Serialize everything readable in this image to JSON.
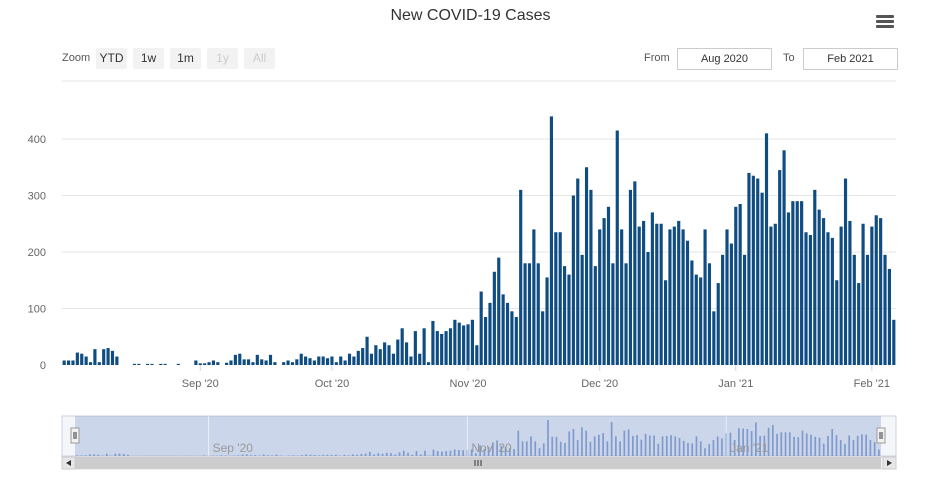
{
  "chart_data": {
    "type": "bar",
    "title": "New COVID-19 Cases",
    "xlabel": "",
    "ylabel": "",
    "ylim": [
      0,
      450
    ],
    "yticks": [
      0,
      100,
      200,
      300,
      400
    ],
    "xticks": [
      {
        "label": "Sep '20",
        "day": 31
      },
      {
        "label": "Oct '20",
        "day": 61
      },
      {
        "label": "Nov '20",
        "day": 92
      },
      {
        "label": "Dec '20",
        "day": 122
      },
      {
        "label": "Jan '21",
        "day": 153
      },
      {
        "label": "Feb '21",
        "day": 184
      }
    ],
    "start_date": "2020-08-01",
    "color": "#0f4c81",
    "values": [
      8,
      8,
      8,
      22,
      20,
      15,
      5,
      28,
      5,
      28,
      30,
      25,
      15,
      0,
      0,
      0,
      2,
      2,
      0,
      2,
      2,
      0,
      2,
      2,
      0,
      0,
      2,
      0,
      0,
      0,
      8,
      3,
      3,
      5,
      8,
      5,
      0,
      4,
      8,
      18,
      20,
      10,
      10,
      5,
      18,
      10,
      8,
      18,
      5,
      0,
      5,
      8,
      5,
      10,
      20,
      15,
      12,
      8,
      15,
      15,
      12,
      15,
      5,
      15,
      8,
      20,
      15,
      25,
      30,
      50,
      20,
      35,
      28,
      40,
      35,
      20,
      45,
      65,
      40,
      15,
      60,
      20,
      65,
      5,
      78,
      60,
      55,
      60,
      65,
      80,
      75,
      70,
      72,
      80,
      35,
      130,
      85,
      110,
      165,
      190,
      125,
      110,
      95,
      85,
      310,
      180,
      180,
      240,
      180,
      95,
      155,
      440,
      235,
      235,
      175,
      160,
      300,
      330,
      195,
      350,
      310,
      175,
      240,
      260,
      280,
      180,
      415,
      240,
      180,
      310,
      325,
      245,
      255,
      200,
      270,
      250,
      250,
      150,
      240,
      245,
      255,
      240,
      220,
      185,
      160,
      155,
      240,
      180,
      95,
      145,
      195,
      240,
      215,
      280,
      285,
      195,
      340,
      335,
      330,
      305,
      410,
      245,
      250,
      345,
      380,
      270,
      290,
      290,
      290,
      235,
      230,
      310,
      275,
      260,
      235,
      225,
      150,
      245,
      330,
      255,
      195,
      145,
      250,
      195,
      245,
      265,
      260,
      195,
      170,
      80
    ]
  },
  "toolbar": {
    "zoom_label": "Zoom",
    "zoom_buttons": [
      "YTD",
      "1w",
      "1m",
      "1y",
      "All"
    ],
    "from_label": "From",
    "from_value": "Aug 2020",
    "to_label": "To",
    "to_value": "Feb 2021"
  },
  "navigator": {
    "labels": [
      "Sep '20",
      "Nov '20",
      "Jan '21"
    ]
  },
  "icons": {
    "menu": "hamburger-menu-icon",
    "scroll_left": "left-arrow-icon",
    "scroll_right": "right-arrow-icon",
    "scroll_grip": "grip-icon"
  }
}
